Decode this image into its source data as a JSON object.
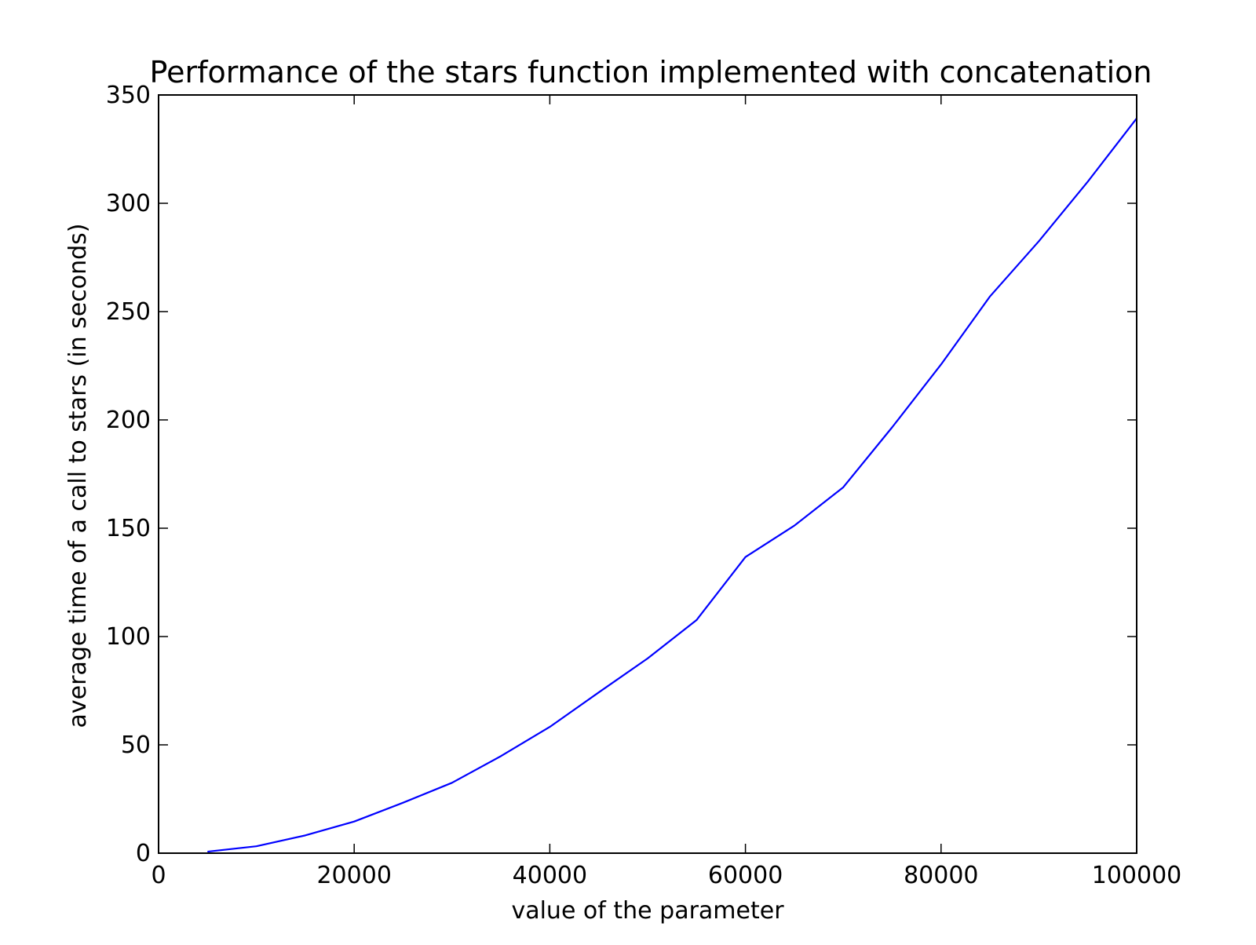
{
  "chart_data": {
    "type": "line",
    "title": "Performance of the stars function implemented with concatenation",
    "xlabel": "value of the parameter",
    "ylabel": "average time of a call to stars (in seconds)",
    "xlim": [
      0,
      100000
    ],
    "ylim": [
      0,
      350
    ],
    "xticks": [
      0,
      20000,
      40000,
      60000,
      80000,
      100000
    ],
    "xtick_labels": [
      "0",
      "20000",
      "40000",
      "60000",
      "80000",
      "100000"
    ],
    "yticks": [
      0,
      50,
      100,
      150,
      200,
      250,
      300,
      350
    ],
    "ytick_labels": [
      "0",
      "50",
      "100",
      "150",
      "200",
      "250",
      "300",
      "350"
    ],
    "grid": false,
    "legend": false,
    "series": [
      {
        "color": "#0000ff",
        "x": [
          5000,
          10000,
          15000,
          20000,
          25000,
          30000,
          35000,
          40000,
          45000,
          50000,
          55000,
          60000,
          65000,
          70000,
          75000,
          80000,
          85000,
          90000,
          95000,
          100000
        ],
        "y": [
          0.7,
          3.2,
          8.2,
          14.6,
          23.3,
          32.5,
          44.8,
          58.3,
          74.2,
          89.9,
          107.6,
          136.7,
          151.2,
          168.9,
          196.6,
          225.6,
          257.0,
          282.5,
          310.0,
          339.2
        ]
      }
    ]
  }
}
